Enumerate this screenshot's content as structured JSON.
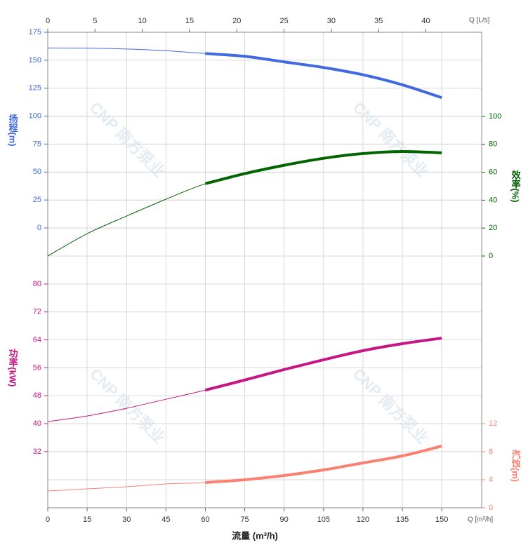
{
  "chart_data": {
    "type": "line",
    "x": [
      0,
      15,
      30,
      45,
      60,
      75,
      90,
      105,
      120,
      135,
      150
    ],
    "xlim": [
      0,
      165.2
    ],
    "xticks": [
      0,
      15,
      30,
      45,
      60,
      75,
      90,
      105,
      120,
      135,
      150
    ],
    "x_label": "Q [m³/h]",
    "x_title": "流量 (m³/h)",
    "x2lim": [
      0,
      45.9
    ],
    "x2ticks": [
      0,
      5,
      10,
      15,
      20,
      25,
      30,
      35,
      40
    ],
    "x2_label": "Q [L/s]",
    "highlight_range": [
      60,
      150
    ],
    "grid": true,
    "watermark": "CNP 南方泵业",
    "series": [
      {
        "label": "扬程(m)",
        "color": "#4169e1",
        "side": "left",
        "ylim": [
          -250.3,
          175
        ],
        "yticks": [
          0,
          25,
          50,
          75,
          100,
          125,
          150,
          175
        ],
        "values": [
          161,
          160.8,
          160,
          158.5,
          156,
          153.5,
          148.5,
          143.5,
          137,
          128,
          116.5
        ]
      },
      {
        "label": "效率(%)",
        "color": "#006400",
        "side": "right",
        "ylim": [
          -180.4,
          160.3
        ],
        "yticks": [
          0,
          20,
          40,
          60,
          80,
          100
        ],
        "values": [
          0,
          16,
          28.6,
          40.7,
          51.8,
          59,
          65,
          70,
          73.4,
          74.9,
          73.9
        ]
      },
      {
        "label": "功率(kW)",
        "color": "#c71585",
        "side": "left",
        "ylim": [
          15.9,
          152.1
        ],
        "yticks": [
          32,
          40,
          48,
          56,
          64,
          72,
          80
        ],
        "values": [
          40.6,
          42.2,
          44.4,
          47,
          49.6,
          52.5,
          55.5,
          58.3,
          60.9,
          62.9,
          64.5
        ]
      },
      {
        "label": "汽蚀(m)",
        "color": "#fa8072",
        "side": "right",
        "ylim": [
          0,
          67.8
        ],
        "yticks": [
          0,
          4,
          8,
          12
        ],
        "values": [
          2.4,
          2.7,
          3,
          3.4,
          3.6,
          4,
          4.6,
          5.4,
          6.4,
          7.4,
          8.8
        ]
      }
    ]
  }
}
